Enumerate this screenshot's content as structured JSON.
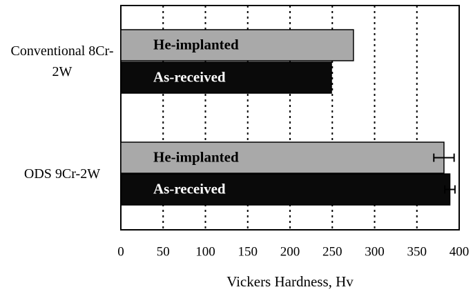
{
  "chart_data": {
    "type": "barh",
    "categories": [
      "Conventional 8Cr-2W",
      "ODS 9Cr-2W"
    ],
    "series": [
      {
        "name": "He-implanted",
        "color": "#a9a9a9",
        "values": [
          275,
          382
        ],
        "errors": [
          null,
          12
        ]
      },
      {
        "name": "As-received",
        "color": "#0a0a0a",
        "values": [
          249,
          389
        ],
        "errors": [
          null,
          6
        ]
      }
    ],
    "xlabel": "Vickers Hardness, Hv",
    "xlim": [
      0,
      400
    ],
    "xticks": [
      0,
      50,
      100,
      150,
      200,
      250,
      300,
      350,
      400
    ],
    "grid": true
  }
}
